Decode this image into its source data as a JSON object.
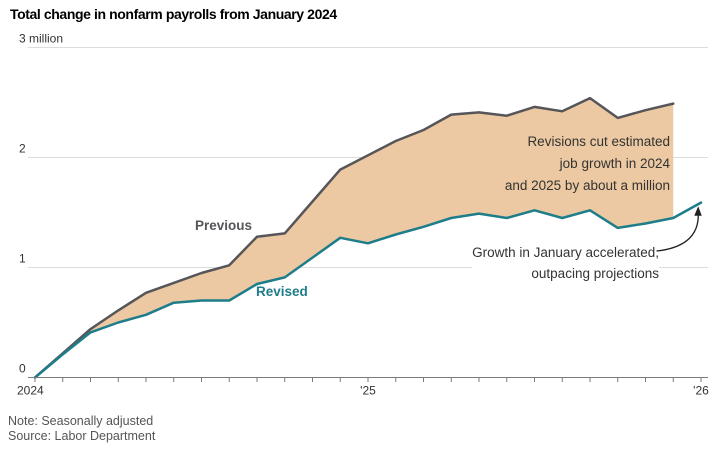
{
  "title": "Total change in nonfarm payrolls from January 2024",
  "note": "Note: Seasonally adjusted",
  "source": "Source: Labor Department",
  "annotations": {
    "revisions_lines": [
      "Revisions cut estimated",
      "job growth in 2024",
      "and 2025 by about a million"
    ],
    "growth_lines": [
      "Growth in January accelerated,",
      "outpacing projections"
    ]
  },
  "chart_data": {
    "type": "line",
    "title": "Total change in nonfarm payrolls from January 2024",
    "unit": "millions of jobs, cumulative change from January 2024",
    "x_start": "Jan 2024",
    "x_step": "1 month",
    "x_tick_labels": [
      {
        "label": "2024",
        "month_index": 0
      },
      {
        "label": "'25",
        "month_index": 12
      },
      {
        "label": "'26",
        "month_index": 24
      }
    ],
    "y_tick_labels": [
      "0",
      "1",
      "2",
      "3 million"
    ],
    "ylim": [
      0,
      3
    ],
    "grid": "horizontal",
    "band_between_series_color": "#ecc9a2",
    "axis_color": "#7a7a7a",
    "gridline_color": "#dcdcdc",
    "series": [
      {
        "name": "Previous",
        "color": "#56565a",
        "end_month": "Dec 2025",
        "values": [
          0,
          0.22,
          0.44,
          0.61,
          0.77,
          0.86,
          0.95,
          1.02,
          1.28,
          1.31,
          1.6,
          1.89,
          2.02,
          2.15,
          2.25,
          2.39,
          2.41,
          2.38,
          2.46,
          2.42,
          2.54,
          2.36,
          2.43,
          2.49
        ]
      },
      {
        "name": "Revised",
        "color": "#1e7d8a",
        "end_month": "Jan 2026",
        "values": [
          0,
          0.21,
          0.41,
          0.5,
          0.57,
          0.68,
          0.7,
          0.7,
          0.85,
          0.91,
          1.09,
          1.27,
          1.22,
          1.3,
          1.37,
          1.45,
          1.49,
          1.45,
          1.52,
          1.45,
          1.52,
          1.36,
          1.4,
          1.45,
          1.59
        ]
      }
    ]
  }
}
